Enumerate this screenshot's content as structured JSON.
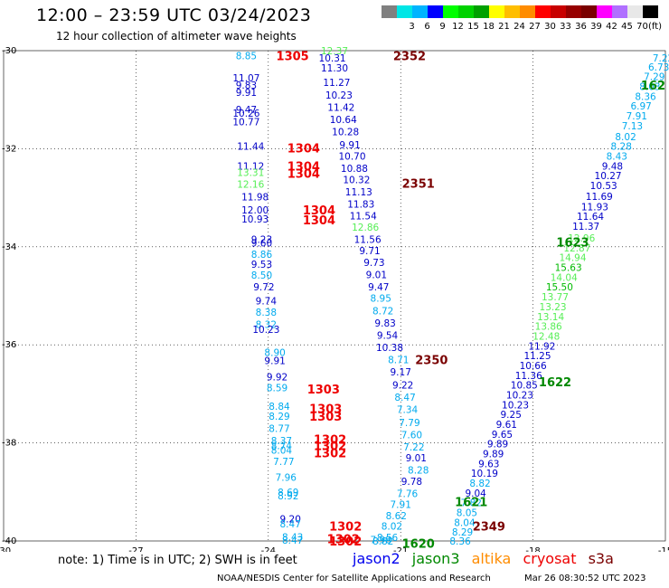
{
  "header": {
    "title": "12:00 – 23:59 UTC 03/24/2023",
    "subtitle": "12 hour collection of altimeter wave heights"
  },
  "scale": {
    "colors": [
      "#808080",
      "#00e6e6",
      "#00b4ff",
      "#0000ff",
      "#00ff00",
      "#00d200",
      "#00a000",
      "#ffff00",
      "#ffbe00",
      "#ff8c00",
      "#ff0000",
      "#c80000",
      "#960000",
      "#7a0000",
      "#ff00ff",
      "#b070ff",
      "#e8e8e8",
      "#000000"
    ],
    "labels": [
      "",
      "3",
      "6",
      "9",
      "12",
      "15",
      "18",
      "21",
      "24",
      "27",
      "30",
      "33",
      "36",
      "39",
      "42",
      "45",
      "70"
    ],
    "unit": "(ft)"
  },
  "chart_data": {
    "type": "scatter",
    "xlim": [
      -30,
      -15
    ],
    "ylim": [
      -40,
      -30
    ],
    "xticks": [
      -30,
      -27,
      -24,
      -21,
      -18,
      -15
    ],
    "yticks": [
      -30,
      -32,
      -34,
      -36,
      -38,
      -40
    ],
    "grid": true,
    "points": [
      {
        "x": -24.5,
        "y": -30.1,
        "v": "8.85",
        "c": "c6"
      },
      {
        "x": -24.5,
        "y": -30.55,
        "v": "11.07",
        "c": "c9"
      },
      {
        "x": -24.5,
        "y": -30.7,
        "v": "9.83",
        "c": "c9"
      },
      {
        "x": -24.5,
        "y": -30.85,
        "v": "9.91",
        "c": "c9"
      },
      {
        "x": -24.5,
        "y": -31.2,
        "v": "9.47",
        "c": "c9"
      },
      {
        "x": -24.5,
        "y": -31.27,
        "v": "10.26",
        "c": "c9"
      },
      {
        "x": -24.5,
        "y": -31.45,
        "v": "10.77",
        "c": "c9"
      },
      {
        "x": -24.4,
        "y": -31.95,
        "v": "11.44",
        "c": "c9"
      },
      {
        "x": -24.4,
        "y": -32.35,
        "v": "11.12",
        "c": "c9"
      },
      {
        "x": -24.4,
        "y": -32.48,
        "v": "13.31",
        "c": "c12"
      },
      {
        "x": -24.4,
        "y": -32.72,
        "v": "12.16",
        "c": "c12"
      },
      {
        "x": -24.3,
        "y": -32.98,
        "v": "11.98",
        "c": "c9"
      },
      {
        "x": -24.3,
        "y": -33.25,
        "v": "12.00",
        "c": "c9"
      },
      {
        "x": -24.3,
        "y": -33.43,
        "v": "10.93",
        "c": "c9"
      },
      {
        "x": -24.15,
        "y": -33.85,
        "v": "9.23",
        "c": "c9"
      },
      {
        "x": -24.15,
        "y": -33.92,
        "v": "9.60",
        "c": "c9"
      },
      {
        "x": -24.15,
        "y": -34.15,
        "v": "8.86",
        "c": "c6"
      },
      {
        "x": -24.15,
        "y": -34.35,
        "v": "9.53",
        "c": "c9"
      },
      {
        "x": -24.15,
        "y": -34.58,
        "v": "8.50",
        "c": "c6"
      },
      {
        "x": -24.1,
        "y": -34.82,
        "v": "9.72",
        "c": "c9"
      },
      {
        "x": -24.05,
        "y": -35.1,
        "v": "9.74",
        "c": "c9"
      },
      {
        "x": -24.05,
        "y": -35.33,
        "v": "8.38",
        "c": "c6"
      },
      {
        "x": -24.05,
        "y": -35.58,
        "v": "8.32",
        "c": "c6"
      },
      {
        "x": -24.05,
        "y": -35.68,
        "v": "10.23",
        "c": "c9"
      },
      {
        "x": -23.85,
        "y": -36.15,
        "v": "8.90",
        "c": "c6"
      },
      {
        "x": -23.85,
        "y": -36.32,
        "v": "9.91",
        "c": "c9"
      },
      {
        "x": -23.8,
        "y": -36.65,
        "v": "9.92",
        "c": "c9"
      },
      {
        "x": -23.8,
        "y": -36.87,
        "v": "8.59",
        "c": "c6"
      },
      {
        "x": -23.75,
        "y": -37.25,
        "v": "8.84",
        "c": "c6"
      },
      {
        "x": -23.75,
        "y": -37.45,
        "v": "8.29",
        "c": "c6"
      },
      {
        "x": -23.75,
        "y": -37.7,
        "v": "8.77",
        "c": "c6"
      },
      {
        "x": -23.7,
        "y": -37.95,
        "v": "8.37",
        "c": "c6"
      },
      {
        "x": -23.7,
        "y": -38.05,
        "v": "8.74",
        "c": "c6"
      },
      {
        "x": -23.7,
        "y": -38.15,
        "v": "8.04",
        "c": "c6"
      },
      {
        "x": -23.65,
        "y": -38.38,
        "v": "7.77",
        "c": "c6"
      },
      {
        "x": -23.6,
        "y": -38.7,
        "v": "7.96",
        "c": "c6"
      },
      {
        "x": -23.55,
        "y": -39.0,
        "v": "8.69",
        "c": "c6"
      },
      {
        "x": -23.55,
        "y": -39.08,
        "v": "8.92",
        "c": "c6"
      },
      {
        "x": -23.5,
        "y": -39.55,
        "v": "9.20",
        "c": "c9"
      },
      {
        "x": -23.5,
        "y": -39.65,
        "v": "8.47",
        "c": "c6"
      },
      {
        "x": -23.45,
        "y": -39.92,
        "v": "8.43",
        "c": "c6"
      },
      {
        "x": -23.45,
        "y": -39.98,
        "v": "8.47",
        "c": "c6"
      },
      {
        "x": -22.55,
        "y": -30.15,
        "v": "10.31",
        "c": "c9"
      },
      {
        "x": -22.5,
        "y": -30.0,
        "v": "12.37",
        "c": "c12"
      },
      {
        "x": -22.5,
        "y": -30.35,
        "v": "11.30",
        "c": "c9"
      },
      {
        "x": -22.45,
        "y": -30.65,
        "v": "11.27",
        "c": "c9"
      },
      {
        "x": -22.4,
        "y": -30.9,
        "v": "10.23",
        "c": "c9"
      },
      {
        "x": -22.35,
        "y": -31.15,
        "v": "11.42",
        "c": "c9"
      },
      {
        "x": -22.3,
        "y": -31.4,
        "v": "10.64",
        "c": "c9"
      },
      {
        "x": -22.25,
        "y": -31.65,
        "v": "10.28",
        "c": "c9"
      },
      {
        "x": -22.15,
        "y": -31.92,
        "v": "9.91",
        "c": "c9"
      },
      {
        "x": -22.1,
        "y": -32.15,
        "v": "10.70",
        "c": "c9"
      },
      {
        "x": -22.05,
        "y": -32.4,
        "v": "10.88",
        "c": "c9"
      },
      {
        "x": -22.0,
        "y": -32.63,
        "v": "10.32",
        "c": "c9"
      },
      {
        "x": -21.95,
        "y": -32.88,
        "v": "11.13",
        "c": "c9"
      },
      {
        "x": -21.9,
        "y": -33.13,
        "v": "11.83",
        "c": "c9"
      },
      {
        "x": -21.85,
        "y": -33.37,
        "v": "11.54",
        "c": "c9"
      },
      {
        "x": -21.8,
        "y": -33.6,
        "v": "12.86",
        "c": "c12"
      },
      {
        "x": -21.75,
        "y": -33.85,
        "v": "11.56",
        "c": "c9"
      },
      {
        "x": -21.7,
        "y": -34.08,
        "v": "9.71",
        "c": "c9"
      },
      {
        "x": -21.6,
        "y": -34.32,
        "v": "9.73",
        "c": "c9"
      },
      {
        "x": -21.55,
        "y": -34.57,
        "v": "9.01",
        "c": "c9"
      },
      {
        "x": -21.5,
        "y": -34.82,
        "v": "9.47",
        "c": "c9"
      },
      {
        "x": -21.45,
        "y": -35.05,
        "v": "8.95",
        "c": "c6"
      },
      {
        "x": -21.4,
        "y": -35.3,
        "v": "8.72",
        "c": "c6"
      },
      {
        "x": -21.35,
        "y": -35.55,
        "v": "9.83",
        "c": "c9"
      },
      {
        "x": -21.3,
        "y": -35.8,
        "v": "9.54",
        "c": "c9"
      },
      {
        "x": -21.25,
        "y": -36.05,
        "v": "10.38",
        "c": "c9"
      },
      {
        "x": -21.05,
        "y": -36.3,
        "v": "8.71",
        "c": "c6"
      },
      {
        "x": -21.0,
        "y": -36.55,
        "v": "9.17",
        "c": "c9"
      },
      {
        "x": -20.95,
        "y": -36.82,
        "v": "9.22",
        "c": "c9"
      },
      {
        "x": -20.9,
        "y": -37.07,
        "v": "8.47",
        "c": "c6"
      },
      {
        "x": -20.85,
        "y": -37.32,
        "v": "7.34",
        "c": "c6"
      },
      {
        "x": -20.8,
        "y": -37.58,
        "v": "7.79",
        "c": "c6"
      },
      {
        "x": -20.75,
        "y": -37.83,
        "v": "7.60",
        "c": "c6"
      },
      {
        "x": -20.7,
        "y": -38.08,
        "v": "7.22",
        "c": "c6"
      },
      {
        "x": -20.65,
        "y": -38.3,
        "v": "9.01",
        "c": "c9"
      },
      {
        "x": -20.6,
        "y": -38.55,
        "v": "8.28",
        "c": "c6"
      },
      {
        "x": -20.75,
        "y": -38.78,
        "v": "9.78",
        "c": "c9"
      },
      {
        "x": -20.85,
        "y": -39.03,
        "v": "7.76",
        "c": "c6"
      },
      {
        "x": -21.0,
        "y": -39.25,
        "v": "7.91",
        "c": "c6"
      },
      {
        "x": -21.1,
        "y": -39.48,
        "v": "8.62",
        "c": "c6"
      },
      {
        "x": -21.2,
        "y": -39.7,
        "v": "8.02",
        "c": "c6"
      },
      {
        "x": -21.3,
        "y": -39.93,
        "v": "8.56",
        "c": "c6"
      },
      {
        "x": -21.4,
        "y": -40.0,
        "v": "8.82",
        "c": "c6"
      },
      {
        "x": -21.45,
        "y": -39.97,
        "v": "7.98",
        "c": "c6"
      },
      {
        "x": -15.05,
        "y": -30.15,
        "v": "7.22",
        "c": "c6"
      },
      {
        "x": -15.15,
        "y": -30.33,
        "v": "6.73",
        "c": "c6"
      },
      {
        "x": -15.25,
        "y": -30.53,
        "v": "7.29",
        "c": "c6"
      },
      {
        "x": -15.35,
        "y": -30.73,
        "v": "8.03",
        "c": "c6"
      },
      {
        "x": -15.45,
        "y": -30.93,
        "v": "8.36",
        "c": "c6"
      },
      {
        "x": -15.55,
        "y": -31.13,
        "v": "6.97",
        "c": "c6"
      },
      {
        "x": -15.65,
        "y": -31.33,
        "v": "7.91",
        "c": "c6"
      },
      {
        "x": -15.75,
        "y": -31.53,
        "v": "7.13",
        "c": "c6"
      },
      {
        "x": -15.9,
        "y": -31.75,
        "v": "8.02",
        "c": "c6"
      },
      {
        "x": -16.0,
        "y": -31.95,
        "v": "8.28",
        "c": "c6"
      },
      {
        "x": -16.1,
        "y": -32.15,
        "v": "8.43",
        "c": "c6"
      },
      {
        "x": -16.2,
        "y": -32.35,
        "v": "9.48",
        "c": "c9"
      },
      {
        "x": -16.3,
        "y": -32.55,
        "v": "10.27",
        "c": "c9"
      },
      {
        "x": -16.4,
        "y": -32.75,
        "v": "10.53",
        "c": "c9"
      },
      {
        "x": -16.5,
        "y": -32.97,
        "v": "11.69",
        "c": "c9"
      },
      {
        "x": -16.6,
        "y": -33.18,
        "v": "11.93",
        "c": "c9"
      },
      {
        "x": -16.7,
        "y": -33.38,
        "v": "11.64",
        "c": "c9"
      },
      {
        "x": -16.8,
        "y": -33.58,
        "v": "11.37",
        "c": "c9"
      },
      {
        "x": -16.9,
        "y": -33.82,
        "v": "12.96",
        "c": "c12"
      },
      {
        "x": -17.0,
        "y": -34.02,
        "v": "12.87",
        "c": "c12"
      },
      {
        "x": -17.1,
        "y": -34.22,
        "v": "14.94",
        "c": "c12"
      },
      {
        "x": -17.2,
        "y": -34.42,
        "v": "15.63",
        "c": "c15"
      },
      {
        "x": -17.3,
        "y": -34.62,
        "v": "14.04",
        "c": "c12"
      },
      {
        "x": -17.4,
        "y": -34.82,
        "v": "15.50",
        "c": "c15"
      },
      {
        "x": -17.5,
        "y": -35.02,
        "v": "13.77",
        "c": "c12"
      },
      {
        "x": -17.55,
        "y": -35.22,
        "v": "13.23",
        "c": "c12"
      },
      {
        "x": -17.6,
        "y": -35.42,
        "v": "13.14",
        "c": "c12"
      },
      {
        "x": -17.65,
        "y": -35.62,
        "v": "13.86",
        "c": "c12"
      },
      {
        "x": -17.7,
        "y": -35.82,
        "v": "12.48",
        "c": "c12"
      },
      {
        "x": -17.8,
        "y": -36.02,
        "v": "11.92",
        "c": "c9"
      },
      {
        "x": -17.9,
        "y": -36.22,
        "v": "11.25",
        "c": "c9"
      },
      {
        "x": -18.0,
        "y": -36.42,
        "v": "10.66",
        "c": "c9"
      },
      {
        "x": -18.1,
        "y": -36.62,
        "v": "11.36",
        "c": "c9"
      },
      {
        "x": -18.2,
        "y": -36.82,
        "v": "10.85",
        "c": "c9"
      },
      {
        "x": -18.3,
        "y": -37.02,
        "v": "10.23",
        "c": "c9"
      },
      {
        "x": -18.4,
        "y": -37.22,
        "v": "10.23",
        "c": "c9"
      },
      {
        "x": -18.5,
        "y": -37.42,
        "v": "9.25",
        "c": "c9"
      },
      {
        "x": -18.6,
        "y": -37.62,
        "v": "9.61",
        "c": "c9"
      },
      {
        "x": -18.7,
        "y": -37.82,
        "v": "9.65",
        "c": "c9"
      },
      {
        "x": -18.8,
        "y": -38.02,
        "v": "9.89",
        "c": "c9"
      },
      {
        "x": -18.9,
        "y": -38.22,
        "v": "9.89",
        "c": "c9"
      },
      {
        "x": -19.0,
        "y": -38.42,
        "v": "9.63",
        "c": "c9"
      },
      {
        "x": -19.1,
        "y": -38.62,
        "v": "10.19",
        "c": "c9"
      },
      {
        "x": -19.2,
        "y": -38.82,
        "v": "8.82",
        "c": "c6"
      },
      {
        "x": -19.3,
        "y": -39.02,
        "v": "9.04",
        "c": "c9"
      },
      {
        "x": -19.4,
        "y": -39.22,
        "v": "7.82",
        "c": "c6"
      },
      {
        "x": -19.5,
        "y": -39.42,
        "v": "8.05",
        "c": "c6"
      },
      {
        "x": -19.55,
        "y": -39.62,
        "v": "8.04",
        "c": "c6"
      },
      {
        "x": -19.6,
        "y": -39.82,
        "v": "8.29",
        "c": "c6"
      },
      {
        "x": -19.65,
        "y": -40.0,
        "v": "8.36",
        "c": "c6"
      }
    ],
    "passes": [
      {
        "x": -23.45,
        "y": -30.1,
        "t": "1305",
        "s": "cryosat"
      },
      {
        "x": -20.8,
        "y": -30.1,
        "t": "2352",
        "s": "s3a"
      },
      {
        "x": -23.2,
        "y": -31.98,
        "t": "1304",
        "s": "cryosat"
      },
      {
        "x": -23.2,
        "y": -32.35,
        "t": "1304",
        "s": "cryosat"
      },
      {
        "x": -23.2,
        "y": -32.5,
        "t": "1304",
        "s": "cryosat"
      },
      {
        "x": -20.6,
        "y": -32.7,
        "t": "2351",
        "s": "s3a"
      },
      {
        "x": -22.85,
        "y": -33.25,
        "t": "1304",
        "s": "cryosat"
      },
      {
        "x": -22.85,
        "y": -33.45,
        "t": "1304",
        "s": "cryosat"
      },
      {
        "x": -15.0,
        "y": -30.7,
        "t": "162",
        "s": "jason3"
      },
      {
        "x": -17.1,
        "y": -33.9,
        "t": "1623",
        "s": "jason3"
      },
      {
        "x": -20.3,
        "y": -36.3,
        "t": "2350",
        "s": "s3a"
      },
      {
        "x": -17.5,
        "y": -36.75,
        "t": "1622",
        "s": "jason3"
      },
      {
        "x": -22.75,
        "y": -36.9,
        "t": "1303",
        "s": "cryosat"
      },
      {
        "x": -22.7,
        "y": -37.3,
        "t": "1303",
        "s": "cryosat"
      },
      {
        "x": -22.7,
        "y": -37.45,
        "t": "1303",
        "s": "cryosat"
      },
      {
        "x": -22.6,
        "y": -37.92,
        "t": "1302",
        "s": "cryosat"
      },
      {
        "x": -22.6,
        "y": -38.05,
        "t": "1302",
        "s": "cryosat"
      },
      {
        "x": -22.6,
        "y": -38.2,
        "t": "1302",
        "s": "cryosat"
      },
      {
        "x": -19.4,
        "y": -39.2,
        "t": "1621",
        "s": "jason3"
      },
      {
        "x": -22.25,
        "y": -39.7,
        "t": "1302",
        "s": "cryosat"
      },
      {
        "x": -19.0,
        "y": -39.7,
        "t": "2349",
        "s": "s3a"
      },
      {
        "x": -22.25,
        "y": -40.0,
        "t": "1302",
        "s": "cryosat"
      },
      {
        "x": -22.3,
        "y": -39.95,
        "t": "1302",
        "s": "cryosat"
      },
      {
        "x": -20.6,
        "y": -40.05,
        "t": "1620",
        "s": "jason3"
      }
    ]
  },
  "colors": {
    "c6": "#00aaee",
    "c9": "#0000c8",
    "c12": "#55ee55",
    "c15": "#00bb00",
    "cryosat": "#ee0000",
    "s3a": "#7a0000",
    "jason3": "#008800"
  },
  "note": "note: 1) Time is in UTC; 2) SWH is in feet",
  "legend": {
    "jason2": {
      "label": "jason2",
      "color": "#0000ee"
    },
    "jason3": {
      "label": "jason3",
      "color": "#008800"
    },
    "altika": {
      "label": "altika",
      "color": "#ff8c00"
    },
    "cryosat": {
      "label": "cryosat",
      "color": "#ee0000"
    },
    "s3a": {
      "label": "s3a",
      "color": "#7a0000"
    }
  },
  "footer": {
    "left": "NOAA/NESDIS Center for Satellite Applications and Research",
    "right": "Mar 26 08:30:52 UTC 2023"
  }
}
